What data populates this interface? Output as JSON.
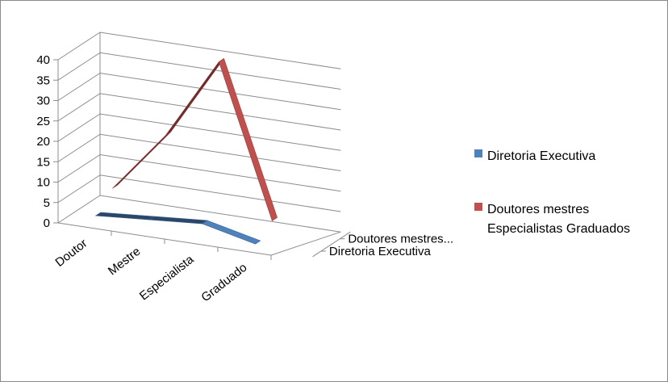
{
  "chart_data": {
    "type": "line",
    "style": "3d",
    "categories": [
      "Doutor",
      "Mestre",
      "Especialista",
      "Graduado"
    ],
    "ylim": [
      0,
      40
    ],
    "y_ticks": [
      "0",
      "5",
      "10",
      "15",
      "20",
      "25",
      "30",
      "35",
      "40"
    ],
    "depth_labels": [
      "Diretoria Executiva",
      "Doutores mestres..."
    ],
    "series": [
      {
        "name": "Diretoria Executiva",
        "values": [
          1,
          2,
          3,
          0
        ],
        "color": "#4F81BD"
      },
      {
        "name": "Doutores mestres Especialistas Graduados",
        "legend_lines": [
          "Doutores mestres",
          "Especialistas Graduados"
        ],
        "values": [
          5,
          20,
          40,
          3
        ],
        "color": "#C0504D"
      }
    ],
    "grid": true,
    "legend_position": "right"
  }
}
